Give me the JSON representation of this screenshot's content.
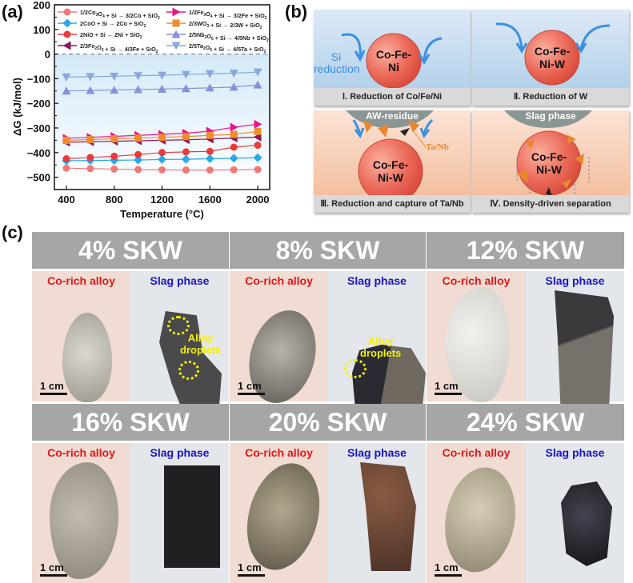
{
  "panels": {
    "a": "(a)",
    "b": "(b)",
    "c": "(c)"
  },
  "chart_data": {
    "type": "line",
    "title": "",
    "xlabel": "Temperature (°C)",
    "ylabel": "ΔG (kJ/mol)",
    "xlim": [
      300,
      2100
    ],
    "ylim": [
      -550,
      200
    ],
    "xticks": [
      400,
      800,
      1200,
      1600,
      2000
    ],
    "yticks": [
      200,
      100,
      0,
      -100,
      -200,
      -300,
      -400,
      -500
    ],
    "zero_line": "dashed",
    "shaded_region": "below 0 (light blue gradient)",
    "legend_position": "top (inside, two columns)",
    "x": [
      400,
      600,
      800,
      1000,
      1200,
      1400,
      1600,
      1800,
      2000
    ],
    "series": [
      {
        "name": "1/2Co3O4 + Si → 3/2Co + SiO2",
        "marker": "circle",
        "color": "#f07878",
        "values": [
          -463,
          -465,
          -467,
          -469,
          -470,
          -471,
          -471,
          -470,
          -469
        ]
      },
      {
        "name": "2CoO + Si → 2Co + SiO2",
        "marker": "diamond",
        "color": "#29a8e8",
        "values": [
          -433,
          -432,
          -431,
          -430,
          -428,
          -427,
          -425,
          -423,
          -421
        ]
      },
      {
        "name": "2NiO + Si → 2Ni + SiO2",
        "marker": "circle",
        "color": "#e83b3b",
        "values": [
          -425,
          -420,
          -415,
          -408,
          -400,
          -397,
          -395,
          -378,
          -370
        ]
      },
      {
        "name": "2/3Fe2O3 + Si → 4/3Fe + SiO2",
        "marker": "triangle-left",
        "color": "#8b1a5c",
        "values": [
          -358,
          -356,
          -354,
          -352,
          -350,
          -348,
          -345,
          -341,
          -337
        ]
      },
      {
        "name": "1/2Fe3O4 + Si → 3/2Fe + SiO2",
        "marker": "triangle-right",
        "color": "#e8158c",
        "values": [
          -342,
          -338,
          -334,
          -330,
          -326,
          -321,
          -313,
          -297,
          -285
        ]
      },
      {
        "name": "2/3WO3 + Si → 2/3W + SiO2",
        "marker": "square",
        "color": "#f08c30",
        "values": [
          -350,
          -347,
          -344,
          -341,
          -338,
          -335,
          -330,
          -326,
          -314
        ]
      },
      {
        "name": "2/5Nb2O5 + Si → 4/5Nb + SiO2",
        "marker": "triangle-up",
        "color": "#8a90d8",
        "values": [
          -150,
          -148,
          -146,
          -144,
          -142,
          -140,
          -137,
          -134,
          -125
        ]
      },
      {
        "name": "2/5Ta2O5 + Si → 4/5Ta + SiO2",
        "marker": "triangle-down",
        "color": "#8aa8d8",
        "values": [
          -93,
          -92,
          -90,
          -88,
          -86,
          -83,
          -80,
          -78,
          -73
        ]
      }
    ]
  },
  "chart_legend": [
    {
      "pre": "1/2Co",
      "s1": "3",
      "mid": "O",
      "s2": "4",
      "post": " + Si → 3/2Co + SiO",
      "s3": "2"
    },
    {
      "pre": "2CoO + Si → 2Co + SiO",
      "s1": "",
      "mid": "",
      "s2": "",
      "post": "",
      "s3": "2"
    },
    {
      "pre": "2NiO + Si → 2Ni +  SiO",
      "s1": "",
      "mid": "",
      "s2": "",
      "post": "",
      "s3": "2"
    },
    {
      "pre": "2/3Fe",
      "s1": "2",
      "mid": "O",
      "s2": "3",
      "post": " + Si → 4/3Fe + SiO",
      "s3": "2"
    },
    {
      "pre": "1/2Fe",
      "s1": "3",
      "mid": "O",
      "s2": "4",
      "post": " + Si → 3/2Fe + SiO",
      "s3": "2"
    },
    {
      "pre": "2/3WO",
      "s1": "",
      "mid": "",
      "s2": "3",
      "post": " + Si → 2/3W + SiO",
      "s3": "2"
    },
    {
      "pre": "2/5Nb",
      "s1": "2",
      "mid": "O",
      "s2": "5",
      "post": " + Si → 4/5Nb + SiO",
      "s3": "2"
    },
    {
      "pre": "2/5Ta",
      "s1": "2",
      "mid": "O",
      "s2": "5",
      "post": " + Si → 4/5Ta + SiO",
      "s3": "2"
    }
  ],
  "schematic": {
    "stages": [
      {
        "caption": "Ⅰ. Reduction of Co/Fe/Ni",
        "sphere": [
          "Co-Fe-",
          "Ni"
        ],
        "side_label": [
          "Si",
          "reduction"
        ]
      },
      {
        "caption": "Ⅱ. Reduction of W",
        "sphere": [
          "Co-Fe-",
          "Ni-W"
        ]
      },
      {
        "caption": "Ⅲ. Reduction and capture of Ta/Nb",
        "sphere": [
          "Co-Fe-",
          "Ni-W"
        ],
        "top_label": "AW-residue",
        "particle_label": "Ta/Nb"
      },
      {
        "caption": "Ⅳ. Density-driven separation",
        "sphere": [
          "Co-Fe-",
          "Ni-W"
        ],
        "top_label": "Slag phase"
      }
    ]
  },
  "samples": {
    "alloy_label": "Co-rich alloy",
    "slag_label": "Slag phase",
    "scale_label": "1 cm",
    "droplet_label": [
      "Alloy",
      "droplets"
    ],
    "items": [
      {
        "title": "4% SKW"
      },
      {
        "title": "8% SKW"
      },
      {
        "title": "12% SKW"
      },
      {
        "title": "16% SKW"
      },
      {
        "title": "20% SKW"
      },
      {
        "title": "24% SKW"
      }
    ]
  }
}
